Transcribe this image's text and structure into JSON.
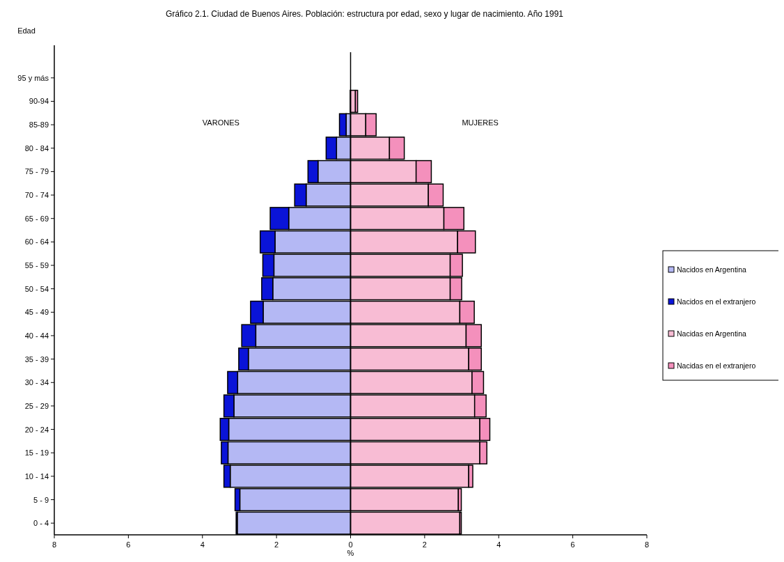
{
  "chart_data": {
    "type": "bar",
    "orientation": "horizontal",
    "stacked": true,
    "title": "Gráfico 2.1. Ciudad de Buenos Aires. Población: estructura por edad, sexo y lugar de nacimiento. Año 1991",
    "xlabel": "%",
    "ylabel": "Edad",
    "categories": [
      "95 y más",
      "90-94",
      "85-89",
      "80 - 84",
      "75 - 79",
      "70 - 74",
      "65 - 69",
      "60 - 64",
      "55 - 59",
      "50 - 54",
      "45 - 49",
      "40 - 44",
      "35 - 39",
      "30 - 34",
      "25 - 29",
      "20 - 24",
      "15 - 19",
      "10 - 14",
      "5 - 9",
      "0 - 4"
    ],
    "series": [
      {
        "name": "Nacidos en Argentina",
        "color": "#b4b8f4",
        "values": [
          null,
          null,
          -0.12,
          -0.38,
          -0.88,
          -1.2,
          -1.67,
          -2.04,
          -2.07,
          -2.1,
          -2.36,
          -2.56,
          -2.76,
          -3.05,
          -3.15,
          -3.29,
          -3.31,
          -3.25,
          -2.99,
          -3.06
        ]
      },
      {
        "name": "Nacidos en el extranjero",
        "color": "#0a14d8",
        "values": [
          null,
          -0.01,
          -0.18,
          -0.28,
          -0.27,
          -0.31,
          -0.5,
          -0.4,
          -0.3,
          -0.3,
          -0.34,
          -0.38,
          -0.26,
          -0.27,
          -0.27,
          -0.23,
          -0.18,
          -0.17,
          -0.13,
          -0.03
        ]
      },
      {
        "name": "Nacidas en Argentina",
        "color": "#f8bcd4",
        "values": [
          null,
          0.13,
          0.41,
          1.05,
          1.77,
          2.1,
          2.52,
          2.89,
          2.69,
          2.69,
          2.95,
          3.12,
          3.19,
          3.28,
          3.35,
          3.49,
          3.49,
          3.19,
          2.91,
          2.95
        ]
      },
      {
        "name": "Nacidas en el extranjero",
        "color": "#f490bc",
        "values": [
          null,
          0.06,
          0.28,
          0.4,
          0.41,
          0.4,
          0.54,
          0.48,
          0.33,
          0.31,
          0.39,
          0.41,
          0.34,
          0.31,
          0.31,
          0.27,
          0.19,
          0.11,
          0.08,
          0.04
        ]
      }
    ],
    "xlim": [
      -8,
      8
    ],
    "xticks": [
      {
        "value": -8,
        "label": "8"
      },
      {
        "value": -6,
        "label": "6"
      },
      {
        "value": -4,
        "label": "4"
      },
      {
        "value": -2,
        "label": "2"
      },
      0,
      2,
      4,
      6,
      8
    ],
    "annotations": [
      "VARONES",
      "MUJERES"
    ],
    "legend": "right"
  }
}
